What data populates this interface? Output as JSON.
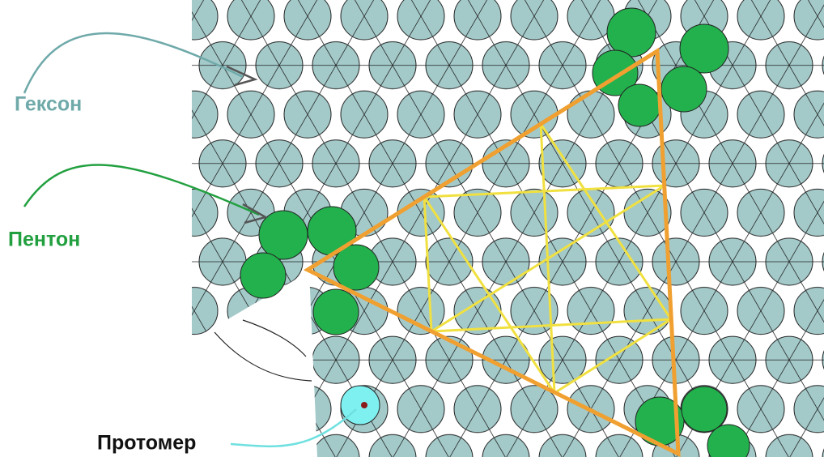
{
  "labels": {
    "hexon": "Гексон",
    "penton": "Пентон",
    "protomer": "Протомер"
  }
}
